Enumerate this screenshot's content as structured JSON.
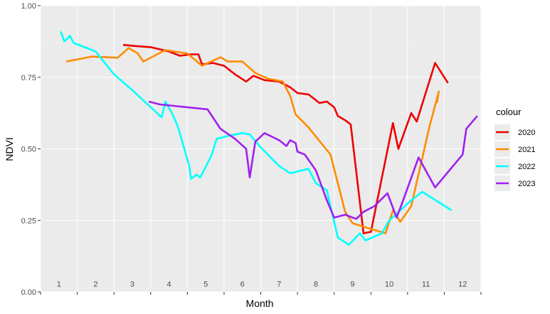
{
  "chart_data": {
    "type": "line",
    "title": "",
    "xlabel": "Month",
    "ylabel": "NDVI",
    "xlim": [
      0.5,
      12.5
    ],
    "ylim": [
      0.0,
      1.0
    ],
    "y_ticks": [
      "0.00",
      "0.25",
      "0.50",
      "0.75",
      "1.00"
    ],
    "y_tick_values": [
      0.0,
      0.25,
      0.5,
      0.75,
      1.0
    ],
    "month_labels": [
      "1",
      "2",
      "3",
      "4",
      "5",
      "6",
      "7",
      "8",
      "9",
      "10",
      "11",
      "12"
    ],
    "legend_title": "colour",
    "legend_position": "right",
    "background": "#EBEBEB",
    "grid": true,
    "series": [
      {
        "name": "2020",
        "color": "#EE0000",
        "points": [
          [
            2.75,
            0.863
          ],
          [
            3.0,
            0.86
          ],
          [
            3.5,
            0.855
          ],
          [
            4.0,
            0.84
          ],
          [
            4.3,
            0.825
          ],
          [
            4.6,
            0.83
          ],
          [
            4.8,
            0.83
          ],
          [
            4.9,
            0.795
          ],
          [
            5.2,
            0.8
          ],
          [
            5.5,
            0.79
          ],
          [
            5.8,
            0.76
          ],
          [
            6.1,
            0.735
          ],
          [
            6.3,
            0.755
          ],
          [
            6.6,
            0.74
          ],
          [
            7.0,
            0.735
          ],
          [
            7.3,
            0.715
          ],
          [
            7.5,
            0.695
          ],
          [
            7.8,
            0.69
          ],
          [
            8.1,
            0.66
          ],
          [
            8.3,
            0.665
          ],
          [
            8.5,
            0.645
          ],
          [
            8.6,
            0.615
          ],
          [
            8.8,
            0.6
          ],
          [
            8.95,
            0.585
          ],
          [
            9.3,
            0.205
          ],
          [
            9.5,
            0.21
          ],
          [
            10.0,
            0.525
          ],
          [
            10.1,
            0.59
          ],
          [
            10.25,
            0.5
          ],
          [
            10.6,
            0.625
          ],
          [
            10.75,
            0.595
          ],
          [
            11.25,
            0.8
          ],
          [
            11.6,
            0.73
          ]
        ]
      },
      {
        "name": "2021",
        "color": "#FF8C00",
        "points": [
          [
            1.2,
            0.805
          ],
          [
            1.9,
            0.822
          ],
          [
            2.6,
            0.818
          ],
          [
            2.9,
            0.852
          ],
          [
            3.15,
            0.833
          ],
          [
            3.3,
            0.805
          ],
          [
            3.9,
            0.845
          ],
          [
            4.5,
            0.833
          ],
          [
            4.9,
            0.79
          ],
          [
            5.4,
            0.82
          ],
          [
            5.6,
            0.805
          ],
          [
            6.0,
            0.805
          ],
          [
            6.35,
            0.765
          ],
          [
            6.7,
            0.745
          ],
          [
            7.1,
            0.735
          ],
          [
            7.3,
            0.685
          ],
          [
            7.45,
            0.62
          ],
          [
            7.8,
            0.575
          ],
          [
            8.05,
            0.535
          ],
          [
            8.4,
            0.48
          ],
          [
            8.8,
            0.28
          ],
          [
            9.0,
            0.24
          ],
          [
            9.5,
            0.22
          ],
          [
            9.9,
            0.205
          ],
          [
            10.1,
            0.285
          ],
          [
            10.3,
            0.245
          ],
          [
            10.6,
            0.3
          ],
          [
            11.1,
            0.58
          ],
          [
            11.35,
            0.7
          ],
          [
            11.3,
            0.66
          ]
        ]
      },
      {
        "name": "2022",
        "color": "#00FFFF",
        "points": [
          [
            1.05,
            0.91
          ],
          [
            1.15,
            0.875
          ],
          [
            1.3,
            0.895
          ],
          [
            1.4,
            0.87
          ],
          [
            1.8,
            0.85
          ],
          [
            2.0,
            0.84
          ],
          [
            2.5,
            0.76
          ],
          [
            3.0,
            0.705
          ],
          [
            3.8,
            0.61
          ],
          [
            3.9,
            0.665
          ],
          [
            4.1,
            0.62
          ],
          [
            4.25,
            0.575
          ],
          [
            4.55,
            0.44
          ],
          [
            4.6,
            0.395
          ],
          [
            4.75,
            0.41
          ],
          [
            4.85,
            0.4
          ],
          [
            5.15,
            0.475
          ],
          [
            5.3,
            0.535
          ],
          [
            5.6,
            0.545
          ],
          [
            6.0,
            0.555
          ],
          [
            6.2,
            0.55
          ],
          [
            6.5,
            0.505
          ],
          [
            7.0,
            0.44
          ],
          [
            7.3,
            0.415
          ],
          [
            7.8,
            0.43
          ],
          [
            8.0,
            0.38
          ],
          [
            8.3,
            0.355
          ],
          [
            8.6,
            0.19
          ],
          [
            8.9,
            0.165
          ],
          [
            9.2,
            0.205
          ],
          [
            9.35,
            0.18
          ],
          [
            9.8,
            0.205
          ],
          [
            10.0,
            0.25
          ],
          [
            10.6,
            0.32
          ],
          [
            10.9,
            0.35
          ],
          [
            11.7,
            0.285
          ]
        ]
      },
      {
        "name": "2023",
        "color": "#A020F0",
        "points": [
          [
            3.45,
            0.665
          ],
          [
            3.75,
            0.655
          ],
          [
            5.05,
            0.638
          ],
          [
            5.4,
            0.57
          ],
          [
            5.8,
            0.535
          ],
          [
            6.1,
            0.5
          ],
          [
            6.2,
            0.4
          ],
          [
            6.35,
            0.525
          ],
          [
            6.6,
            0.555
          ],
          [
            7.0,
            0.53
          ],
          [
            7.2,
            0.51
          ],
          [
            7.3,
            0.53
          ],
          [
            7.45,
            0.52
          ],
          [
            7.5,
            0.49
          ],
          [
            7.7,
            0.48
          ],
          [
            8.0,
            0.425
          ],
          [
            8.3,
            0.32
          ],
          [
            8.5,
            0.26
          ],
          [
            8.8,
            0.27
          ],
          [
            9.0,
            0.26
          ],
          [
            9.1,
            0.255
          ],
          [
            9.3,
            0.28
          ],
          [
            9.6,
            0.3
          ],
          [
            9.95,
            0.345
          ],
          [
            10.2,
            0.26
          ],
          [
            10.35,
            0.31
          ],
          [
            10.8,
            0.47
          ],
          [
            11.25,
            0.365
          ],
          [
            12.0,
            0.48
          ],
          [
            12.1,
            0.57
          ],
          [
            12.4,
            0.615
          ]
        ]
      }
    ]
  }
}
